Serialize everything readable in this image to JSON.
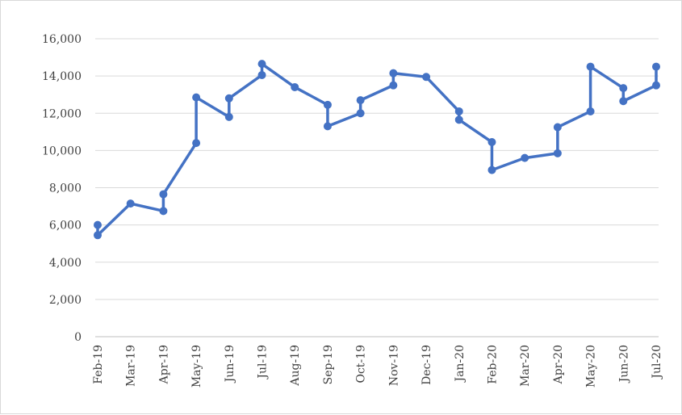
{
  "chart_data": {
    "type": "line",
    "title": "",
    "xlabel": "",
    "ylabel": "",
    "ylim": [
      0,
      16000
    ],
    "y_ticks": [
      0,
      2000,
      4000,
      6000,
      8000,
      10000,
      12000,
      14000,
      16000
    ],
    "y_tick_labels": [
      "0",
      "2,000",
      "4,000",
      "6,000",
      "8,000",
      "10,000",
      "12,000",
      "14,000",
      "16,000"
    ],
    "categories": [
      "Feb-19",
      "Mar-19",
      "Apr-19",
      "May-19",
      "Jun-19",
      "Jul-19",
      "Aug-19",
      "Sep-19",
      "Oct-19",
      "Nov-19",
      "Dec-19",
      "Jan-20",
      "Feb-20",
      "Mar-20",
      "Apr-20",
      "May-20",
      "Jun-20",
      "Jul-20"
    ],
    "grid": "horizontal",
    "legend": "none",
    "color": "#4472C4",
    "points": [
      {
        "month": "Feb-19",
        "y": 6000
      },
      {
        "month": "Feb-19",
        "y": 5450
      },
      {
        "month": "Mar-19",
        "y": 7150
      },
      {
        "month": "Apr-19",
        "y": 6750
      },
      {
        "month": "Apr-19",
        "y": 7650
      },
      {
        "month": "May-19",
        "y": 10400
      },
      {
        "month": "May-19",
        "y": 12850
      },
      {
        "month": "Jun-19",
        "y": 11800
      },
      {
        "month": "Jun-19",
        "y": 12800
      },
      {
        "month": "Jul-19",
        "y": 14050
      },
      {
        "month": "Jul-19",
        "y": 14650
      },
      {
        "month": "Aug-19",
        "y": 13400
      },
      {
        "month": "Sep-19",
        "y": 12450
      },
      {
        "month": "Sep-19",
        "y": 11300
      },
      {
        "month": "Oct-19",
        "y": 12000
      },
      {
        "month": "Oct-19",
        "y": 12700
      },
      {
        "month": "Nov-19",
        "y": 13500
      },
      {
        "month": "Nov-19",
        "y": 14150
      },
      {
        "month": "Dec-19",
        "y": 13950
      },
      {
        "month": "Jan-20",
        "y": 12100
      },
      {
        "month": "Jan-20",
        "y": 11650
      },
      {
        "month": "Feb-20",
        "y": 10450
      },
      {
        "month": "Feb-20",
        "y": 8950
      },
      {
        "month": "Mar-20",
        "y": 9600
      },
      {
        "month": "Apr-20",
        "y": 9850
      },
      {
        "month": "Apr-20",
        "y": 11250
      },
      {
        "month": "May-20",
        "y": 12100
      },
      {
        "month": "May-20",
        "y": 14500
      },
      {
        "month": "Jun-20",
        "y": 13350
      },
      {
        "month": "Jun-20",
        "y": 12650
      },
      {
        "month": "Jul-20",
        "y": 13500
      },
      {
        "month": "Jul-20",
        "y": 14500
      }
    ]
  }
}
